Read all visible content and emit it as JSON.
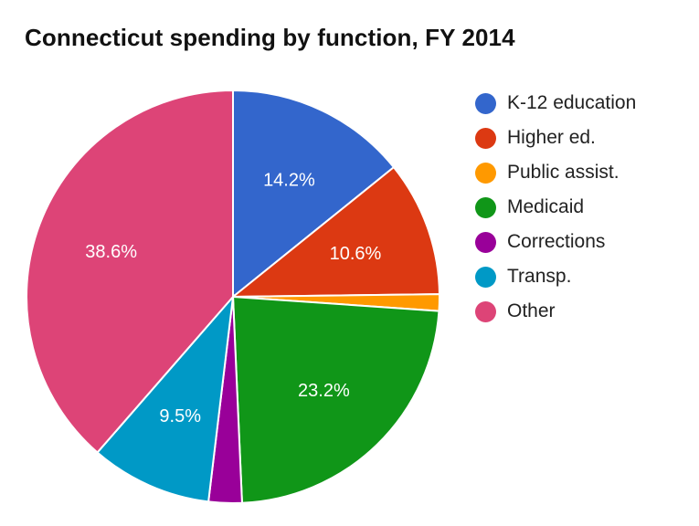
{
  "chart_data": {
    "type": "pie",
    "title": "Connecticut spending by function, FY 2014",
    "categories": [
      "K-12 education",
      "Higher ed.",
      "Public assist.",
      "Medicaid",
      "Corrections",
      "Transp.",
      "Other"
    ],
    "values": [
      14.2,
      10.6,
      1.3,
      23.2,
      2.6,
      9.5,
      38.6
    ],
    "data_labels": [
      "14.2%",
      "10.6%",
      "",
      "23.2%",
      "",
      "9.5%",
      "38.6%"
    ],
    "colors": [
      "#3366cc",
      "#dc3912",
      "#ff9900",
      "#109618",
      "#990099",
      "#0099c6",
      "#dd4477"
    ],
    "legend_position": "right",
    "unit": "%"
  },
  "title": "Connecticut spending by function, FY 2014",
  "legend": {
    "items": [
      {
        "label": "K-12 education",
        "color": "#3366cc"
      },
      {
        "label": "Higher ed.",
        "color": "#dc3912"
      },
      {
        "label": "Public assist.",
        "color": "#ff9900"
      },
      {
        "label": "Medicaid",
        "color": "#109618"
      },
      {
        "label": "Corrections",
        "color": "#990099"
      },
      {
        "label": "Transp.",
        "color": "#0099c6"
      },
      {
        "label": "Other",
        "color": "#dd4477"
      }
    ]
  }
}
